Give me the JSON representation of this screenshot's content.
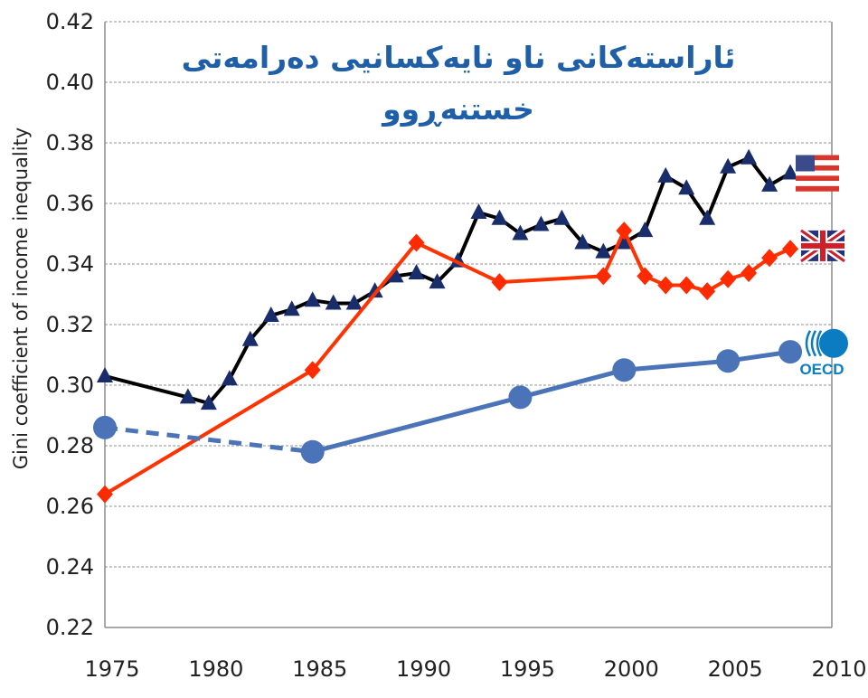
{
  "chart_data": {
    "type": "line",
    "title_lines": [
      "ئاراستەکانی ناو نایەکسانیی دەرامەتی",
      "خستنەڕوو"
    ],
    "ylabel": "Gini coefficient of income inequality",
    "xlabel": "",
    "xlim": [
      1975,
      2010
    ],
    "ylim": [
      0.22,
      0.42
    ],
    "x_ticks": [
      1975,
      1980,
      1985,
      1990,
      1995,
      2000,
      2005,
      2010
    ],
    "y_ticks": [
      "0.22",
      "0.24",
      "0.26",
      "0.28",
      "0.30",
      "0.32",
      "0.34",
      "0.36",
      "0.38",
      "0.40",
      "0.42"
    ],
    "grid": "horizontal",
    "legend": "right-side flag and logo markers",
    "series": [
      {
        "key": "us",
        "color": "#000000",
        "marker": "triangle",
        "marker_color": "#1a2d6b",
        "x": [
          1975,
          1979,
          1980,
          1981,
          1982,
          1983,
          1984,
          1985,
          1986,
          1987,
          1988,
          1989,
          1990,
          1991,
          1992,
          1993,
          1994,
          1995,
          1996,
          1997,
          1998,
          1999,
          2000,
          2001,
          2002,
          2003,
          2004,
          2005,
          2006,
          2007,
          2008
        ],
        "y": [
          0.303,
          0.296,
          0.294,
          0.302,
          0.315,
          0.323,
          0.325,
          0.328,
          0.327,
          0.327,
          0.331,
          0.336,
          0.337,
          0.334,
          0.341,
          0.357,
          0.355,
          0.35,
          0.353,
          0.355,
          0.347,
          0.344,
          0.347,
          0.351,
          0.369,
          0.365,
          0.355,
          0.372,
          0.375,
          0.366,
          0.37
        ]
      },
      {
        "key": "uk",
        "color": "#ff3300",
        "marker": "diamond",
        "marker_color": "#ff2a00",
        "x": [
          1975,
          1985,
          1990,
          1994,
          1999,
          2000,
          2001,
          2002,
          2003,
          2004,
          2005,
          2006,
          2007,
          2008
        ],
        "y": [
          0.264,
          0.305,
          0.347,
          0.334,
          0.336,
          0.351,
          0.336,
          0.333,
          0.333,
          0.331,
          0.335,
          0.337,
          0.342,
          0.345
        ]
      },
      {
        "key": "oecd",
        "color": "#4a73b8",
        "marker": "circle",
        "marker_color": "#4a73b8",
        "dashed_until": 1985,
        "x": [
          1975,
          1985,
          1995,
          2000,
          2005,
          2008
        ],
        "y": [
          0.286,
          0.278,
          0.296,
          0.305,
          0.308,
          0.311
        ]
      }
    ],
    "legend_markers": [
      {
        "key": "us",
        "icon": "us-flag-icon",
        "y": 0.37
      },
      {
        "key": "uk",
        "icon": "uk-flag-icon",
        "y": 0.346
      },
      {
        "key": "oecd",
        "icon": "oecd-logo-icon",
        "logo_text": "OECD",
        "y": 0.312
      }
    ]
  }
}
